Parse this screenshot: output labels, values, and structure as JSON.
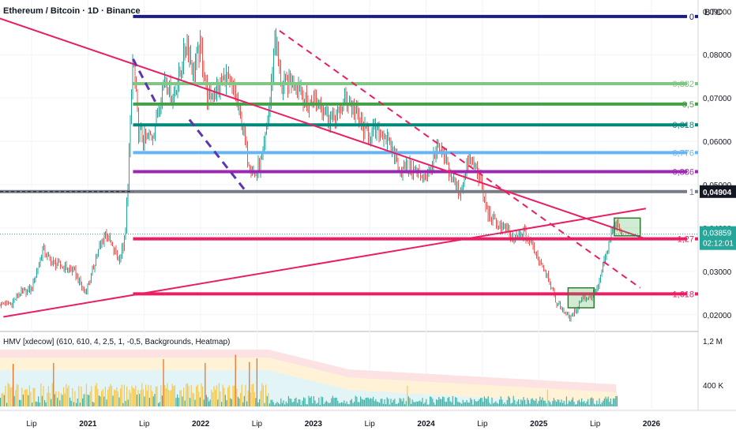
{
  "header": {
    "title": "Ethereum / Bitcoin · 1D · Binance",
    "currency": "BTC"
  },
  "indicator": {
    "title": "HMV [xdecow] (610, 610, 4, 2,5, 1, -0,5, Backgrounds, Heatmap)",
    "yticks": [
      "1,2 M",
      "400 K"
    ]
  },
  "chart_data": {
    "type": "line",
    "title": "Ethereum / Bitcoin · 1D · Binance",
    "x_ticks": [
      "Lip",
      "2021",
      "Lip",
      "2022",
      "Lip",
      "2023",
      "Lip",
      "2024",
      "Lip",
      "2025",
      "Lip",
      "2026"
    ],
    "y_ticks": [
      "0,09000",
      "0,08000",
      "0,07000",
      "0,06000",
      "0,05000",
      "0,04000",
      "0,03000",
      "0,02000"
    ],
    "ylim": [
      0.0165,
      0.0926
    ],
    "grid": true,
    "last_price": {
      "value": "0,03859",
      "countdown": "02:12:01"
    },
    "reference_price": {
      "value": "0,04904"
    },
    "fib_levels": [
      {
        "label": "0",
        "value": 0.0888,
        "color": "#1a1a8c"
      },
      {
        "label": "0,382",
        "value": 0.0733,
        "color": "#81c784"
      },
      {
        "label": "0,5",
        "value": 0.0686,
        "color": "#43a047"
      },
      {
        "label": "0,618",
        "value": 0.0638,
        "color": "#00897b"
      },
      {
        "label": "0,776",
        "value": 0.0574,
        "color": "#64b5f6"
      },
      {
        "label": "0,886",
        "value": 0.053,
        "color": "#9c27b0"
      },
      {
        "label": "1",
        "value": 0.0484,
        "color": "#787b86"
      },
      {
        "label": "1,27",
        "value": 0.0375,
        "color": "#e91e63"
      },
      {
        "label": "1,618",
        "value": 0.0248,
        "color": "#e91e63"
      }
    ],
    "series": [
      {
        "points": [
          [
            2020.32,
            0.0225
          ],
          [
            2020.4,
            0.025
          ],
          [
            2020.5,
            0.026
          ],
          [
            2020.6,
            0.035
          ],
          [
            2020.68,
            0.032
          ],
          [
            2020.78,
            0.031
          ],
          [
            2020.88,
            0.03
          ],
          [
            2020.97,
            0.025
          ],
          [
            2021.02,
            0.028
          ],
          [
            2021.08,
            0.034
          ],
          [
            2021.16,
            0.039
          ],
          [
            2021.22,
            0.035
          ],
          [
            2021.28,
            0.033
          ],
          [
            2021.33,
            0.037
          ],
          [
            2021.36,
            0.054
          ],
          [
            2021.4,
            0.08
          ],
          [
            2021.45,
            0.062
          ],
          [
            2021.52,
            0.06
          ],
          [
            2021.58,
            0.062
          ],
          [
            2021.64,
            0.07
          ],
          [
            2021.68,
            0.075
          ],
          [
            2021.75,
            0.07
          ],
          [
            2021.82,
            0.076
          ],
          [
            2021.88,
            0.083
          ],
          [
            2021.93,
            0.076
          ],
          [
            2022.0,
            0.082
          ],
          [
            2022.06,
            0.07
          ],
          [
            2022.15,
            0.072
          ],
          [
            2022.22,
            0.075
          ],
          [
            2022.3,
            0.071
          ],
          [
            2022.36,
            0.065
          ],
          [
            2022.42,
            0.056
          ],
          [
            2022.48,
            0.052
          ],
          [
            2022.55,
            0.056
          ],
          [
            2022.62,
            0.07
          ],
          [
            2022.66,
            0.085
          ],
          [
            2022.72,
            0.072
          ],
          [
            2022.8,
            0.074
          ],
          [
            2022.88,
            0.073
          ],
          [
            2022.95,
            0.068
          ],
          [
            2023.0,
            0.07
          ],
          [
            2023.08,
            0.068
          ],
          [
            2023.15,
            0.065
          ],
          [
            2023.22,
            0.066
          ],
          [
            2023.3,
            0.07
          ],
          [
            2023.38,
            0.066
          ],
          [
            2023.46,
            0.062
          ],
          [
            2023.55,
            0.062
          ],
          [
            2023.62,
            0.062
          ],
          [
            2023.7,
            0.058
          ],
          [
            2023.78,
            0.053
          ],
          [
            2023.86,
            0.054
          ],
          [
            2023.95,
            0.052
          ],
          [
            2024.02,
            0.052
          ],
          [
            2024.1,
            0.058
          ],
          [
            2024.17,
            0.056
          ],
          [
            2024.24,
            0.051
          ],
          [
            2024.3,
            0.048
          ],
          [
            2024.38,
            0.056
          ],
          [
            2024.46,
            0.053
          ],
          [
            2024.54,
            0.044
          ],
          [
            2024.62,
            0.041
          ],
          [
            2024.7,
            0.04
          ],
          [
            2024.78,
            0.037
          ],
          [
            2024.86,
            0.039
          ],
          [
            2024.94,
            0.036
          ],
          [
            2025.0,
            0.033
          ],
          [
            2025.08,
            0.029
          ],
          [
            2025.15,
            0.023
          ],
          [
            2025.22,
            0.021
          ],
          [
            2025.28,
            0.019
          ],
          [
            2025.33,
            0.021
          ],
          [
            2025.38,
            0.024
          ],
          [
            2025.46,
            0.024
          ],
          [
            2025.52,
            0.026
          ],
          [
            2025.58,
            0.032
          ],
          [
            2025.64,
            0.038
          ],
          [
            2025.68,
            0.041
          ],
          [
            2025.74,
            0.0386
          ]
        ]
      }
    ],
    "trendlines": [
      {
        "style": "solid",
        "color": "#e91e63",
        "from": [
          2020.2,
          0.0885
        ],
        "to": [
          2025.95,
          0.0375
        ]
      },
      {
        "style": "solid",
        "color": "#e91e63",
        "from": [
          2020.25,
          0.0195
        ],
        "to": [
          2025.95,
          0.0445
        ]
      },
      {
        "style": "dashed",
        "color": "#e91e63",
        "from": [
          2022.7,
          0.0855
        ],
        "to": [
          2025.9,
          0.0262
        ]
      },
      {
        "style": "dashed",
        "color": "#5e35b1",
        "from": [
          2021.4,
          0.079
        ],
        "to": [
          2021.62,
          0.068
        ]
      },
      {
        "style": "dashed",
        "color": "#5e35b1",
        "from": [
          2021.9,
          0.065
        ],
        "to": [
          2022.4,
          0.0485
        ]
      }
    ],
    "highlight_boxes": [
      {
        "from": [
          2025.26,
          0.0262
        ],
        "to": [
          2025.49,
          0.0216
        ]
      },
      {
        "from": [
          2025.67,
          0.0423
        ],
        "to": [
          2025.9,
          0.0382
        ]
      }
    ]
  }
}
